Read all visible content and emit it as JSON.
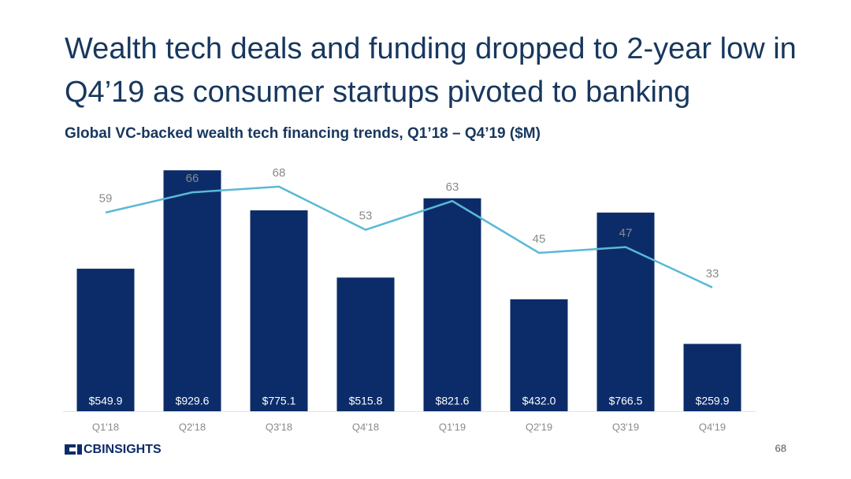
{
  "chart_data": {
    "type": "bar-line",
    "title_lines": [
      "Wealth tech deals and funding dropped to 2-year low in",
      "Q4’19 as consumer startups pivoted to banking"
    ],
    "subtitle": "Global VC-backed wealth tech financing trends, Q1’18 – Q4’19 ($M)",
    "categories": [
      "Q1'18",
      "Q2'18",
      "Q3'18",
      "Q4'18",
      "Q1'19",
      "Q2'19",
      "Q3'19",
      "Q4'19"
    ],
    "series": [
      {
        "name": "Funding ($M)",
        "type": "bar",
        "color": "#0c2c69",
        "axis": "y",
        "values": [
          549.9,
          929.6,
          775.1,
          515.8,
          821.6,
          432.0,
          766.5,
          259.9
        ],
        "value_labels": [
          "$549.9",
          "$929.6",
          "$775.1",
          "$515.8",
          "$821.6",
          "$432.0",
          "$766.5",
          "$259.9"
        ]
      },
      {
        "name": "Deals",
        "type": "line",
        "color": "#5ab9d6",
        "axis": "y2",
        "values": [
          59,
          66,
          68,
          53,
          63,
          45,
          47,
          33
        ]
      }
    ],
    "ylim": [
      0,
      1000
    ],
    "y2lim": [
      -10,
      80
    ],
    "brand": "CBINSIGHTS",
    "page_number": "68"
  }
}
